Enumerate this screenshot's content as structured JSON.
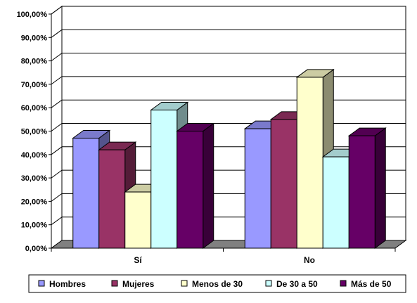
{
  "chart_data": {
    "type": "bar",
    "title": "",
    "xlabel": "",
    "ylabel": "",
    "ylim": [
      0,
      100
    ],
    "y_ticks": [
      "0,00%",
      "10,00%",
      "20,00%",
      "30,00%",
      "40,00%",
      "50,00%",
      "60,00%",
      "70,00%",
      "80,00%",
      "90,00%",
      "100,00%"
    ],
    "grid": true,
    "legend_position": "bottom",
    "categories": [
      "Sí",
      "No"
    ],
    "series": [
      {
        "name": "Hombres",
        "color": "#9999FF",
        "values": [
          47,
          51
        ]
      },
      {
        "name": "Mujeres",
        "color": "#993366",
        "values": [
          42,
          55
        ]
      },
      {
        "name": "Menos de 30",
        "color": "#FFFFCC",
        "values": [
          24,
          73
        ]
      },
      {
        "name": "De 30 a 50",
        "color": "#CCFFFF",
        "values": [
          59,
          39
        ]
      },
      {
        "name": "Más de 50",
        "color": "#660066",
        "values": [
          50,
          48
        ]
      }
    ]
  }
}
